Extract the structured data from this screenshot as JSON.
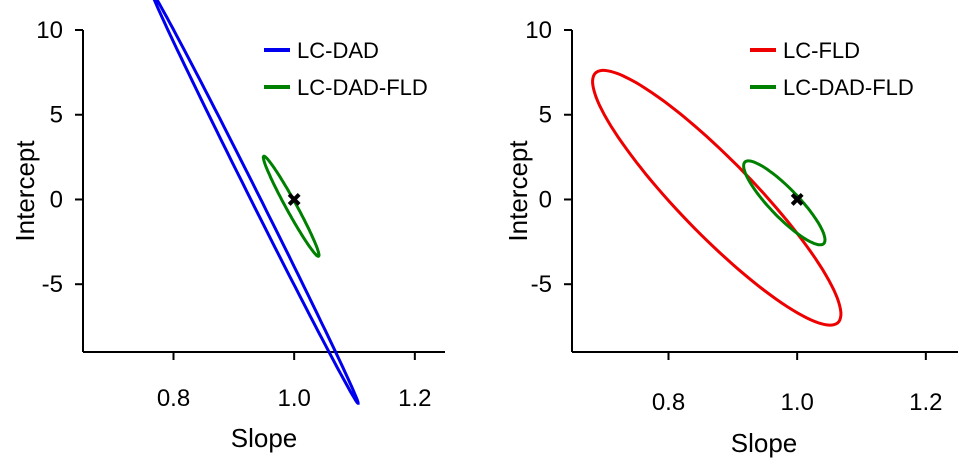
{
  "chart_data": [
    {
      "type": "line",
      "xlabel": "Slope",
      "ylabel": "Intercept",
      "xlim": [
        0.65,
        1.25
      ],
      "ylim": [
        -9,
        10
      ],
      "xticks": [
        0.8,
        1.0,
        1.2
      ],
      "xtick_labels": [
        "0.8",
        "1.0",
        "1.2"
      ],
      "yticks": [
        -5,
        0,
        5,
        10
      ],
      "ytick_labels": [
        "-5",
        "0",
        "5",
        "10"
      ],
      "legend_position": "top-right",
      "reference_point": {
        "x": 1.0,
        "y": 0,
        "marker": "x"
      },
      "series": [
        {
          "name": "LC-DAD",
          "color": "#0000ee",
          "ellipse": {
            "center": [
              0.935,
              0.1
            ],
            "points": [
              [
                0.8,
                9.3
              ],
              [
                1.04,
                -8.3
              ],
              [
                0.83,
                8.0
              ],
              [
                1.06,
                -6.8
              ]
            ]
          }
        },
        {
          "name": "LC-DAD-FLD",
          "color": "#008000",
          "ellipse": {
            "center": [
              0.995,
              -0.4
            ],
            "points": [
              [
                0.96,
                2.2
              ],
              [
                1.03,
                -3.1
              ],
              [
                0.965,
                1.0
              ],
              [
                1.025,
                -1.8
              ]
            ]
          }
        }
      ]
    },
    {
      "type": "line",
      "xlabel": "Slope",
      "ylabel": "Intercept",
      "xlim": [
        0.65,
        1.25
      ],
      "ylim": [
        -9,
        10
      ],
      "xticks": [
        0.8,
        1.0,
        1.2
      ],
      "xtick_labels": [
        "0.8",
        "1.0",
        "1.2"
      ],
      "yticks": [
        -5,
        0,
        5,
        10
      ],
      "ytick_labels": [
        "-5",
        "0",
        "5",
        "10"
      ],
      "legend_position": "top-right",
      "reference_point": {
        "x": 1.0,
        "y": 0,
        "marker": "x"
      },
      "series": [
        {
          "name": "LC-FLD",
          "color": "#ee0000",
          "ellipse": {
            "center": [
              0.875,
              0.1
            ],
            "points": [
              [
                0.69,
                5.8
              ],
              [
                1.06,
                -4.5
              ],
              [
                0.82,
                5.0
              ],
              [
                0.95,
                -4.6
              ]
            ]
          }
        },
        {
          "name": "LC-DAD-FLD",
          "color": "#008000",
          "ellipse": {
            "center": [
              0.98,
              -0.2
            ],
            "points": [
              [
                0.92,
                1.5
              ],
              [
                1.045,
                -2.0
              ],
              [
                0.96,
                1.6
              ],
              [
                1.0,
                -2.0
              ]
            ]
          }
        }
      ]
    }
  ]
}
